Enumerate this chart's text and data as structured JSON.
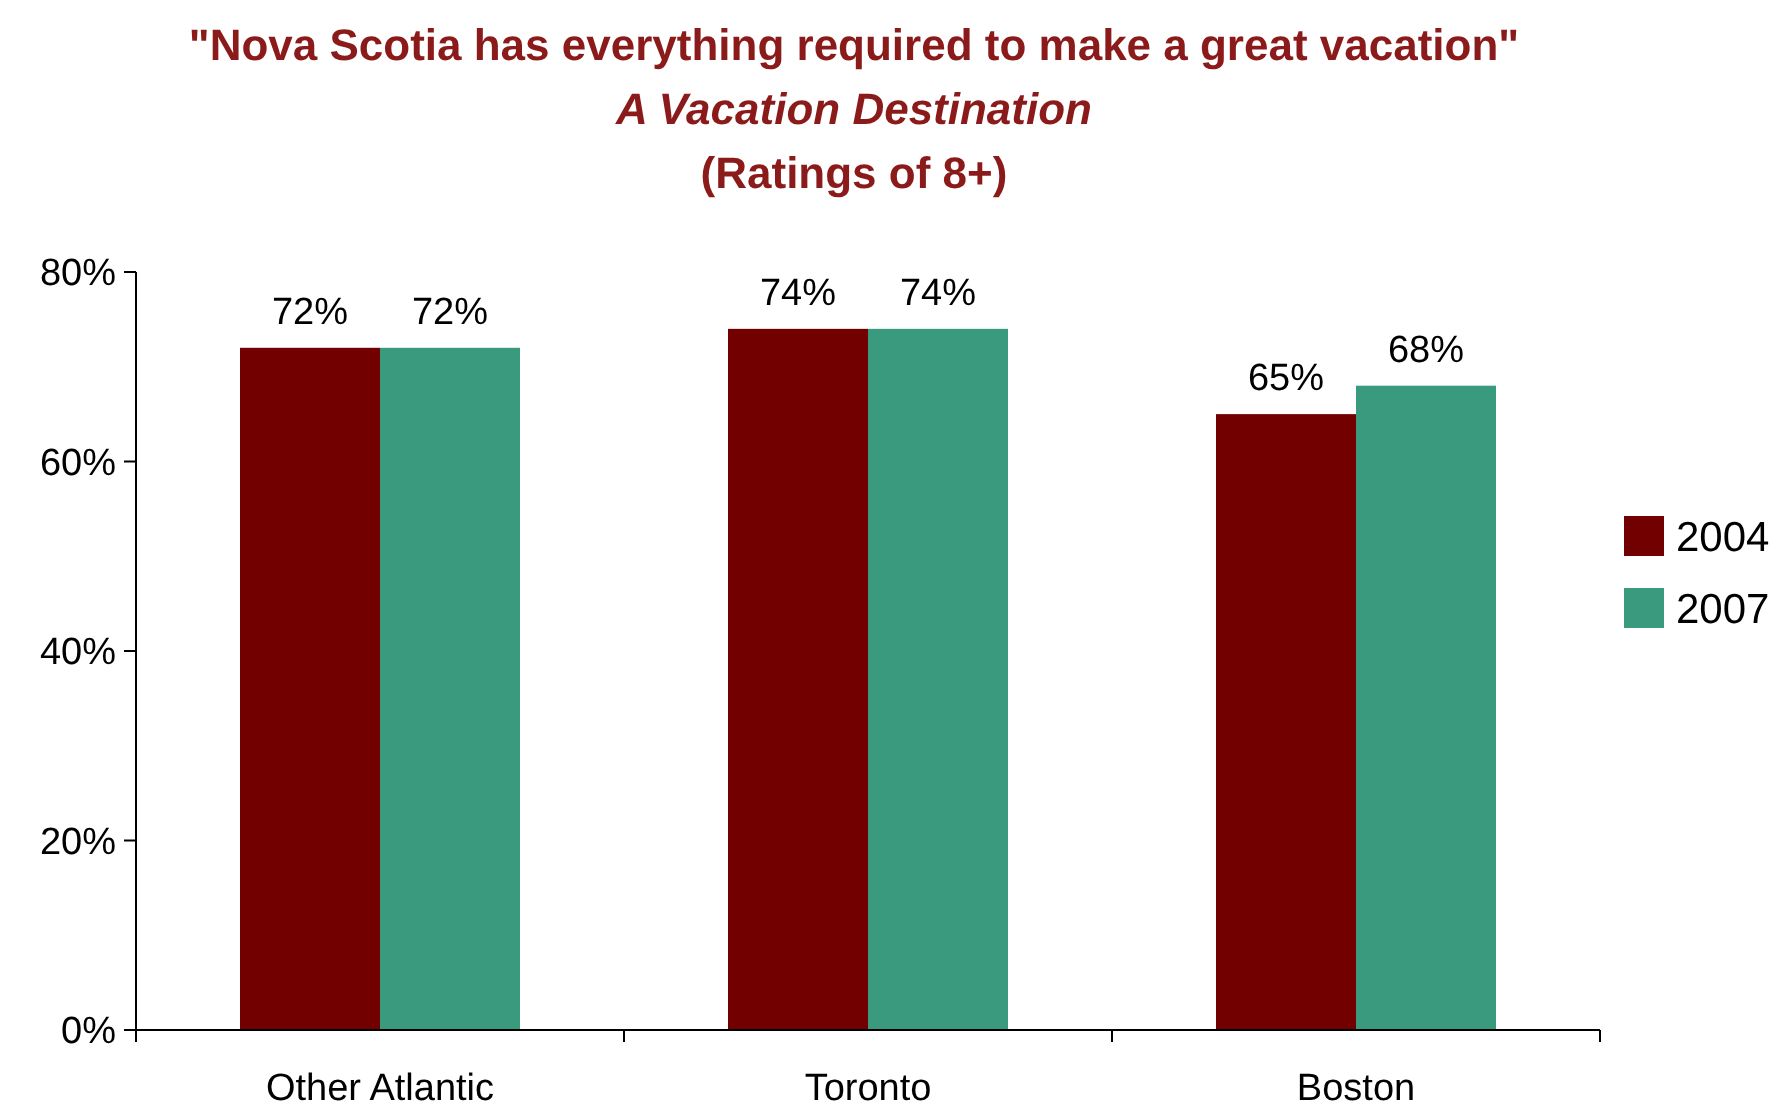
{
  "chart_data": {
    "type": "bar",
    "title": "\"Nova Scotia has everything required to make a great vacation\"",
    "subtitle": "A Vacation Destination\n(Ratings of 8+)",
    "categories": [
      "Other Atlantic",
      "Toronto",
      "Boston"
    ],
    "series": [
      {
        "name": "2004",
        "color": "#720000",
        "values": [
          72,
          74,
          65
        ],
        "value_labels": [
          "72%",
          "74%",
          "65%"
        ]
      },
      {
        "name": "2007",
        "color": "#3a9a7d",
        "values": [
          72,
          74,
          68
        ],
        "value_labels": [
          "72%",
          "74%",
          "68%"
        ]
      }
    ],
    "ylim": [
      0,
      80
    ],
    "yticks": [
      {
        "value": 0,
        "label": "0%"
      },
      {
        "value": 20,
        "label": "20%"
      },
      {
        "value": 40,
        "label": "40%"
      },
      {
        "value": 60,
        "label": "60%"
      },
      {
        "value": 80,
        "label": "80%"
      }
    ],
    "grid": false,
    "legend": "right"
  }
}
